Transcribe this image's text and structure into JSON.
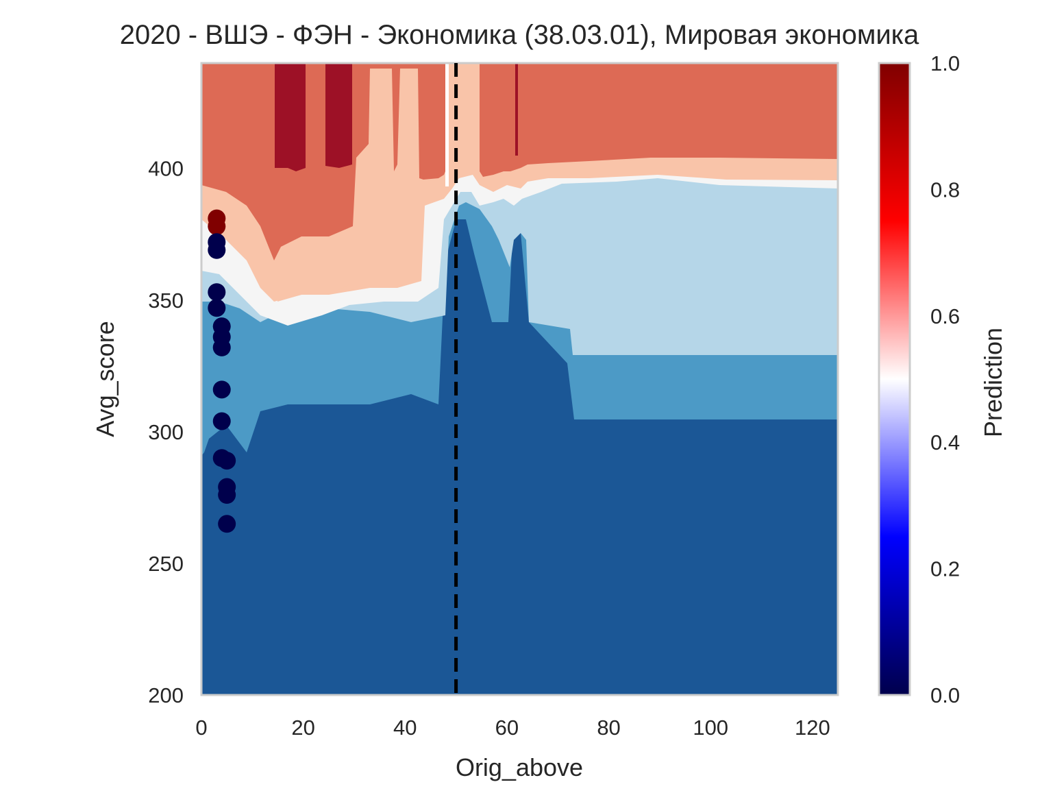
{
  "chart_data": {
    "type": "heatmap",
    "title": "2020 - ВШЭ - ФЭН - Экономика (38.03.01), Мировая экономика",
    "xlabel": "Orig_above",
    "ylabel": "Avg_score",
    "xlim": [
      0,
      125
    ],
    "ylim": [
      200,
      440
    ],
    "x_ticks": [
      "0",
      "20",
      "40",
      "60",
      "80",
      "100",
      "120"
    ],
    "y_ticks": [
      "200",
      "250",
      "300",
      "350",
      "400"
    ],
    "grid": false,
    "vline": {
      "x": 50,
      "style": "dashed",
      "color": "#000000"
    },
    "colorbar": {
      "label": "Prediction",
      "range": [
        0,
        1
      ],
      "ticks": [
        "0.0",
        "0.2",
        "0.4",
        "0.6",
        "0.8",
        "1.0"
      ],
      "colormap": "seismic"
    },
    "contour_levels": [
      {
        "range": [
          0.0,
          0.25
        ],
        "color": "#1b5796"
      },
      {
        "range": [
          0.25,
          0.375
        ],
        "color": "#4c9ac6"
      },
      {
        "range": [
          0.375,
          0.5
        ],
        "color": "#b5d6e8"
      },
      {
        "range": [
          0.5,
          0.625
        ],
        "color": "#f5f5f5"
      },
      {
        "range": [
          0.625,
          0.75
        ],
        "color": "#f9c4a9"
      },
      {
        "range": [
          0.75,
          0.875
        ],
        "color": "#dd6a55"
      },
      {
        "range": [
          0.875,
          1.0
        ],
        "color": "#9d1126"
      }
    ],
    "points": [
      {
        "x": 3,
        "y": 381,
        "value": 1.0
      },
      {
        "x": 3,
        "y": 378,
        "value": 1.0
      },
      {
        "x": 3,
        "y": 372,
        "value": 0.0
      },
      {
        "x": 3,
        "y": 369,
        "value": 0.0
      },
      {
        "x": 3,
        "y": 353,
        "value": 0.0
      },
      {
        "x": 3,
        "y": 347,
        "value": 0.0
      },
      {
        "x": 4,
        "y": 340,
        "value": 0.0
      },
      {
        "x": 4,
        "y": 336,
        "value": 0.0
      },
      {
        "x": 4,
        "y": 332,
        "value": 0.0
      },
      {
        "x": 4,
        "y": 316,
        "value": 0.0
      },
      {
        "x": 4,
        "y": 304,
        "value": 0.0
      },
      {
        "x": 4,
        "y": 290,
        "value": 0.0
      },
      {
        "x": 5,
        "y": 289,
        "value": 0.0
      },
      {
        "x": 5,
        "y": 279,
        "value": 0.0
      },
      {
        "x": 5,
        "y": 276,
        "value": 0.0
      },
      {
        "x": 5,
        "y": 265,
        "value": 0.0
      }
    ]
  }
}
